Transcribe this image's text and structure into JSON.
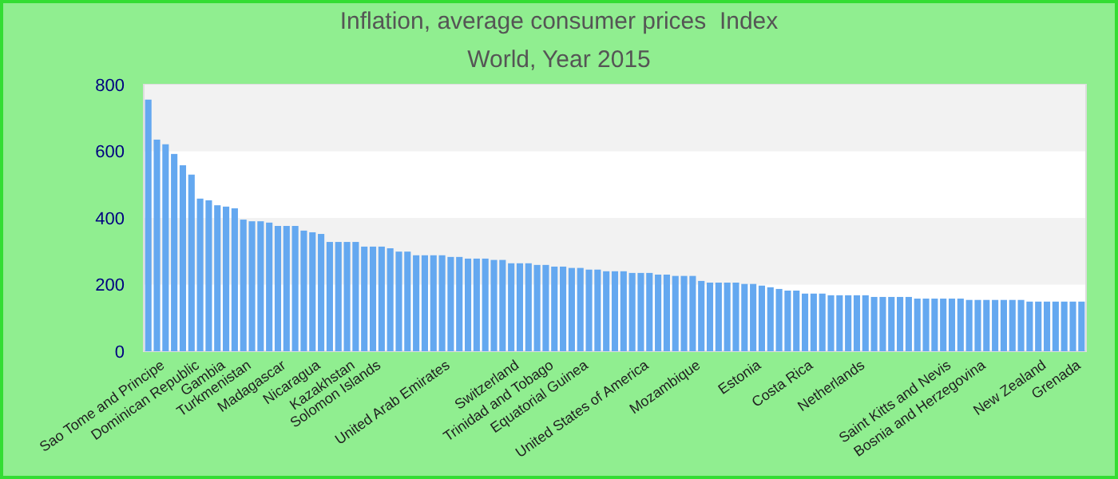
{
  "chart_data": {
    "type": "bar",
    "title": "Inflation, average consumer prices  Index",
    "subtitle": "World, Year 2015",
    "categories": [
      null,
      null,
      "Sao Tome and Principe",
      null,
      null,
      null,
      "Dominican Republic",
      null,
      null,
      "Gambia",
      null,
      null,
      "Turkmenistan",
      null,
      null,
      null,
      "Madagascar",
      null,
      null,
      null,
      "Nicaragua",
      null,
      null,
      null,
      "Kazakhstan",
      null,
      null,
      "Solomon Islands",
      null,
      null,
      null,
      null,
      null,
      null,
      null,
      "United Arab Emirates",
      null,
      null,
      null,
      null,
      null,
      null,
      null,
      "Switzerland",
      null,
      null,
      null,
      "Trinidad and Tobago",
      null,
      null,
      null,
      "Equatorial Guinea",
      null,
      null,
      null,
      null,
      null,
      null,
      "United States of America",
      null,
      null,
      null,
      null,
      null,
      "Mozambique",
      null,
      null,
      null,
      null,
      null,
      null,
      "Estonia",
      null,
      null,
      null,
      null,
      null,
      "Costa Rica",
      null,
      null,
      null,
      null,
      null,
      "Netherlands",
      null,
      null,
      null,
      null,
      null,
      null,
      null,
      null,
      null,
      "Saint Kitts and Nevis",
      null,
      null,
      null,
      "Bosnia and Herzegovina",
      null,
      null,
      null,
      null,
      null,
      null,
      "New Zealand",
      null,
      null,
      null,
      "Grenada"
    ],
    "values": [
      755,
      635,
      621,
      592,
      558,
      530,
      458,
      453,
      438,
      434,
      429,
      395,
      390,
      390,
      386,
      376,
      376,
      376,
      362,
      357,
      352,
      328,
      328,
      328,
      328,
      314,
      314,
      314,
      309,
      299,
      299,
      288,
      288,
      288,
      288,
      283,
      283,
      278,
      278,
      278,
      274,
      274,
      264,
      264,
      264,
      259,
      259,
      254,
      254,
      250,
      250,
      245,
      245,
      240,
      240,
      240,
      235,
      235,
      235,
      230,
      230,
      226,
      226,
      226,
      211,
      206,
      206,
      206,
      206,
      202,
      202,
      197,
      192,
      187,
      182,
      182,
      173,
      173,
      173,
      168,
      168,
      168,
      168,
      168,
      163,
      163,
      163,
      163,
      163,
      158,
      158,
      158,
      158,
      158,
      158,
      154,
      154,
      154,
      154,
      154,
      154,
      154,
      149,
      149,
      149,
      149,
      149,
      149,
      149
    ],
    "color": "#64a8f0",
    "ylim": [
      0,
      800
    ],
    "yticks": [
      0,
      200,
      400,
      600,
      800
    ]
  }
}
